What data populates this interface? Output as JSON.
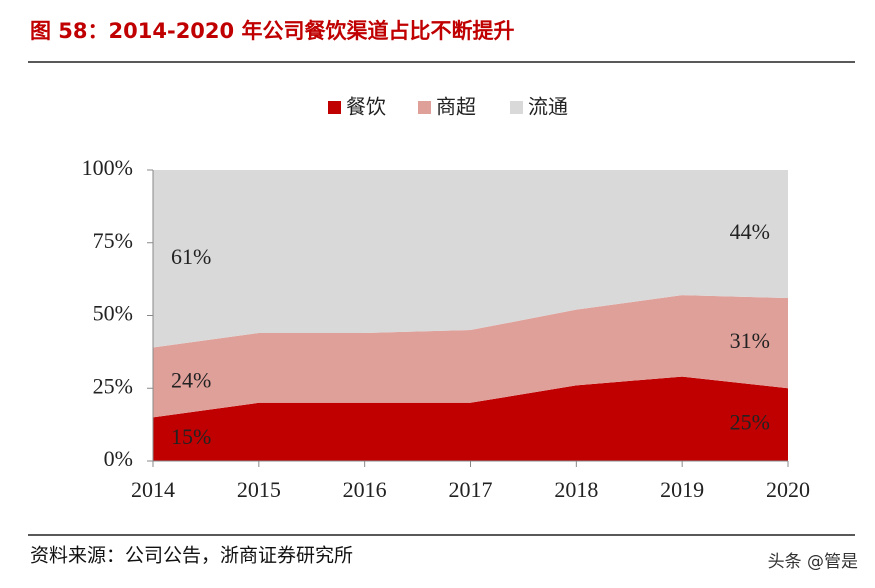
{
  "header": {
    "title": "图 58：2014-2020 年公司餐饮渠道占比不断提升"
  },
  "chart_data": {
    "type": "stacked-area",
    "categories": [
      "2014",
      "2015",
      "2016",
      "2017",
      "2018",
      "2019",
      "2020"
    ],
    "series": [
      {
        "name": "餐饮",
        "color": "#c00000",
        "values": [
          15,
          20,
          20,
          20,
          26,
          29,
          25
        ],
        "value_labels": [
          "15%",
          null,
          null,
          null,
          null,
          null,
          "25%"
        ]
      },
      {
        "name": "商超",
        "color": "#e0a09a",
        "values": [
          24,
          24,
          24,
          25,
          26,
          28,
          31
        ],
        "value_labels": [
          "24%",
          null,
          null,
          null,
          null,
          null,
          "31%"
        ]
      },
      {
        "name": "流通",
        "color": "#d9d9d9",
        "values": [
          61,
          56,
          56,
          55,
          48,
          43,
          44
        ],
        "value_labels": [
          "61%",
          null,
          null,
          null,
          null,
          null,
          "44%"
        ]
      }
    ],
    "ylim": [
      0,
      100
    ],
    "yticks": [
      {
        "value": 0,
        "label": "0%"
      },
      {
        "value": 25,
        "label": "25%"
      },
      {
        "value": 50,
        "label": "50%"
      },
      {
        "value": 75,
        "label": "75%"
      },
      {
        "value": 100,
        "label": "100%"
      }
    ],
    "legend": "top"
  },
  "footer": {
    "source": "资料来源：公司公告，浙商证券研究所",
    "watermark": "头条 @管是"
  }
}
